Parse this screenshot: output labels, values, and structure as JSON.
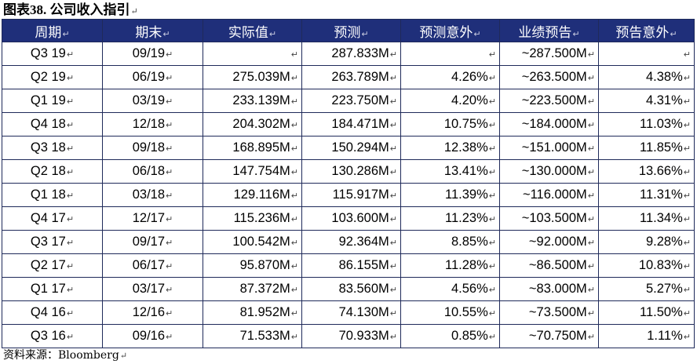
{
  "title": "图表38. 公司收入指引",
  "mark": "↵",
  "headers": [
    "周期",
    "期末",
    "实际值",
    "预测",
    "预测意外",
    "业绩预告",
    "预告意外"
  ],
  "rows": [
    [
      "Q3 19",
      "09/19",
      "",
      "287.833M",
      "",
      "~287.500M",
      ""
    ],
    [
      "Q2 19",
      "06/19",
      "275.039M",
      "263.789M",
      "4.26%",
      "~263.500M",
      "4.38%"
    ],
    [
      "Q1 19",
      "03/19",
      "233.139M",
      "223.750M",
      "4.20%",
      "~223.500M",
      "4.31%"
    ],
    [
      "Q4 18",
      "12/18",
      "204.302M",
      "184.471M",
      "10.75%",
      "~184.000M",
      "11.03%"
    ],
    [
      "Q3 18",
      "09/18",
      "168.895M",
      "150.294M",
      "12.38%",
      "~151.000M",
      "11.85%"
    ],
    [
      "Q2 18",
      "06/18",
      "147.754M",
      "130.286M",
      "13.41%",
      "~130.000M",
      "13.66%"
    ],
    [
      "Q1 18",
      "03/18",
      "129.116M",
      "115.917M",
      "11.39%",
      "~116.000M",
      "11.31%"
    ],
    [
      "Q4 17",
      "12/17",
      "115.236M",
      "103.600M",
      "11.23%",
      "~103.500M",
      "11.34%"
    ],
    [
      "Q3 17",
      "09/17",
      "100.542M",
      "92.364M",
      "8.85%",
      "~92.000M",
      "9.28%"
    ],
    [
      "Q2 17",
      "06/17",
      "95.870M",
      "86.155M",
      "11.28%",
      "~86.500M",
      "10.83%"
    ],
    [
      "Q1 17",
      "03/17",
      "87.372M",
      "83.560M",
      "4.56%",
      "~83.000M",
      "5.27%"
    ],
    [
      "Q4 16",
      "12/16",
      "81.952M",
      "74.130M",
      "10.55%",
      "~73.500M",
      "11.50%"
    ],
    [
      "Q3 16",
      "09/16",
      "71.533M",
      "70.933M",
      "0.85%",
      "~70.750M",
      "1.11%"
    ]
  ],
  "source": "资料来源：Bloomberg"
}
